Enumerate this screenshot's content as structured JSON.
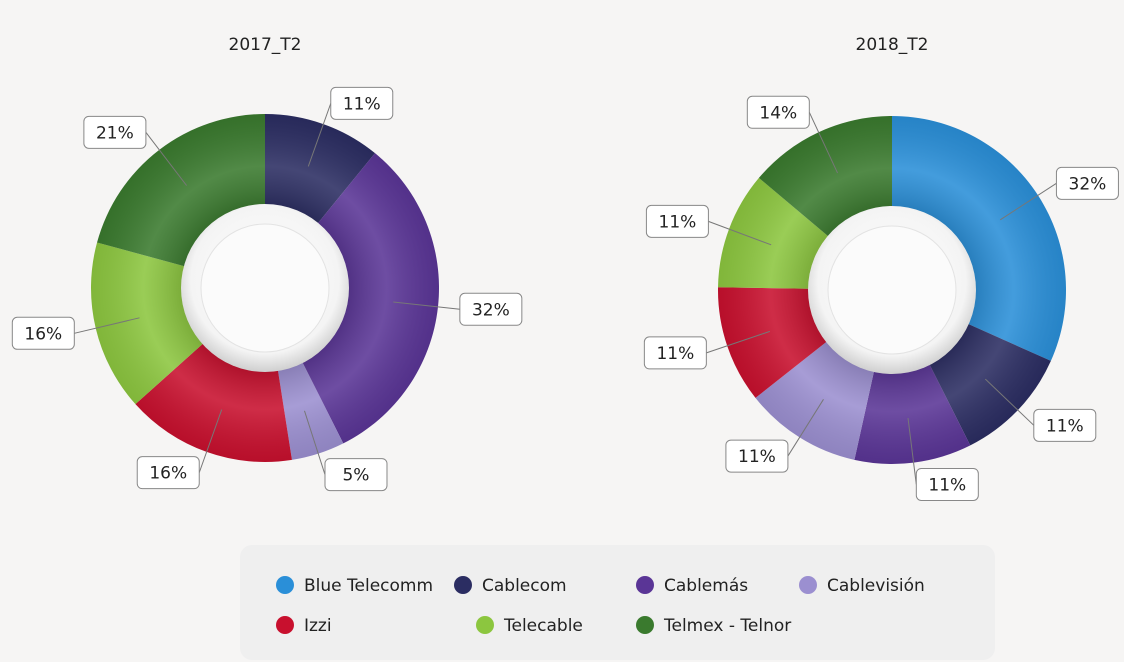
{
  "chart_data": [
    {
      "type": "pie",
      "title": "2017_T2",
      "categories": [
        "Cablecom",
        "Cablemás",
        "Cablevisión",
        "Izzi",
        "Telecable",
        "Telmex - Telnor"
      ],
      "values": [
        11,
        32,
        5,
        16,
        16,
        21
      ],
      "value_labels": [
        "11%",
        "32%",
        "5%",
        "16%",
        "16%",
        "21%"
      ]
    },
    {
      "type": "pie",
      "title": "2018_T2",
      "categories": [
        "Blue Telecomm",
        "Cablecom",
        "Cablemás",
        "Cablevisión",
        "Izzi",
        "Telecable",
        "Telmex - Telnor"
      ],
      "values": [
        32,
        11,
        11,
        11,
        11,
        11,
        14
      ],
      "value_labels": [
        "32%",
        "11%",
        "11%",
        "11%",
        "11%",
        "11%",
        "14%"
      ]
    }
  ],
  "legend": {
    "items": [
      {
        "name": "Blue Telecomm",
        "color": "#2a8fd8"
      },
      {
        "name": "Cablecom",
        "color": "#2b2d62"
      },
      {
        "name": "Cablemás",
        "color": "#5a3596"
      },
      {
        "name": "Cablevisión",
        "color": "#9b8fd0"
      },
      {
        "name": "Izzi",
        "color": "#c8102e"
      },
      {
        "name": "Telecable",
        "color": "#8cc63f"
      },
      {
        "name": "Telmex - Telnor",
        "color": "#3a7a2e"
      }
    ]
  }
}
